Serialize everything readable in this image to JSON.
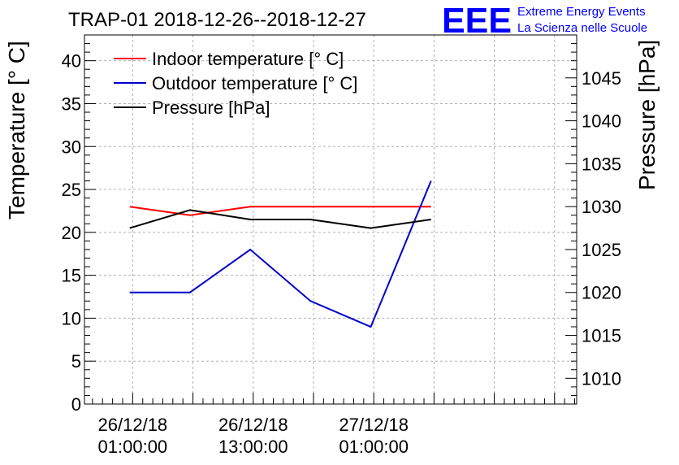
{
  "chart_data": {
    "type": "line",
    "title": "TRAP-01 2018-12-26--2018-12-27",
    "ylabel": "Temperature [° C]",
    "y2label": "Pressure [hPa]",
    "ylim": [
      0,
      43
    ],
    "y2lim": [
      1007,
      1050
    ],
    "yticks": [
      0,
      5,
      10,
      15,
      20,
      25,
      30,
      35,
      40
    ],
    "y2ticks": [
      1010,
      1015,
      1020,
      1025,
      1030,
      1035,
      1040,
      1045
    ],
    "x_hours_range": [
      -4.8,
      44.2
    ],
    "x_tick_hours": [
      0,
      24
    ],
    "xtick_labels": [
      {
        "hour": 0,
        "date": "26/12/18",
        "time": "01:00:00"
      },
      {
        "hour": 12,
        "date": "26/12/18",
        "time": "13:00:00"
      },
      {
        "hour": 24,
        "date": "27/12/18",
        "time": "01:00:00"
      }
    ],
    "x_hours": [
      -0.3,
      5.7,
      11.7,
      17.7,
      23.7,
      29.7
    ],
    "series": [
      {
        "name": "Indoor temperature [° C]",
        "axis": "left",
        "color": "#ff0000",
        "values": [
          23,
          22,
          23,
          23,
          23,
          23
        ]
      },
      {
        "name": "Outdoor temperature [° C]",
        "axis": "left",
        "color": "#0000cc",
        "values": [
          13,
          13,
          18,
          12,
          9,
          26
        ]
      },
      {
        "name": "Pressure [hPa]",
        "axis": "right",
        "color": "#000000",
        "values": [
          1027.5,
          1029.6,
          1028.5,
          1028.5,
          1027.5,
          1028.5
        ]
      }
    ],
    "grid": true,
    "legend": "top-left"
  },
  "logo": {
    "mark": "EEE",
    "line1": "Extreme Energy Events",
    "line2": "La Scienza nelle Scuole",
    "color": "#0000ff"
  }
}
